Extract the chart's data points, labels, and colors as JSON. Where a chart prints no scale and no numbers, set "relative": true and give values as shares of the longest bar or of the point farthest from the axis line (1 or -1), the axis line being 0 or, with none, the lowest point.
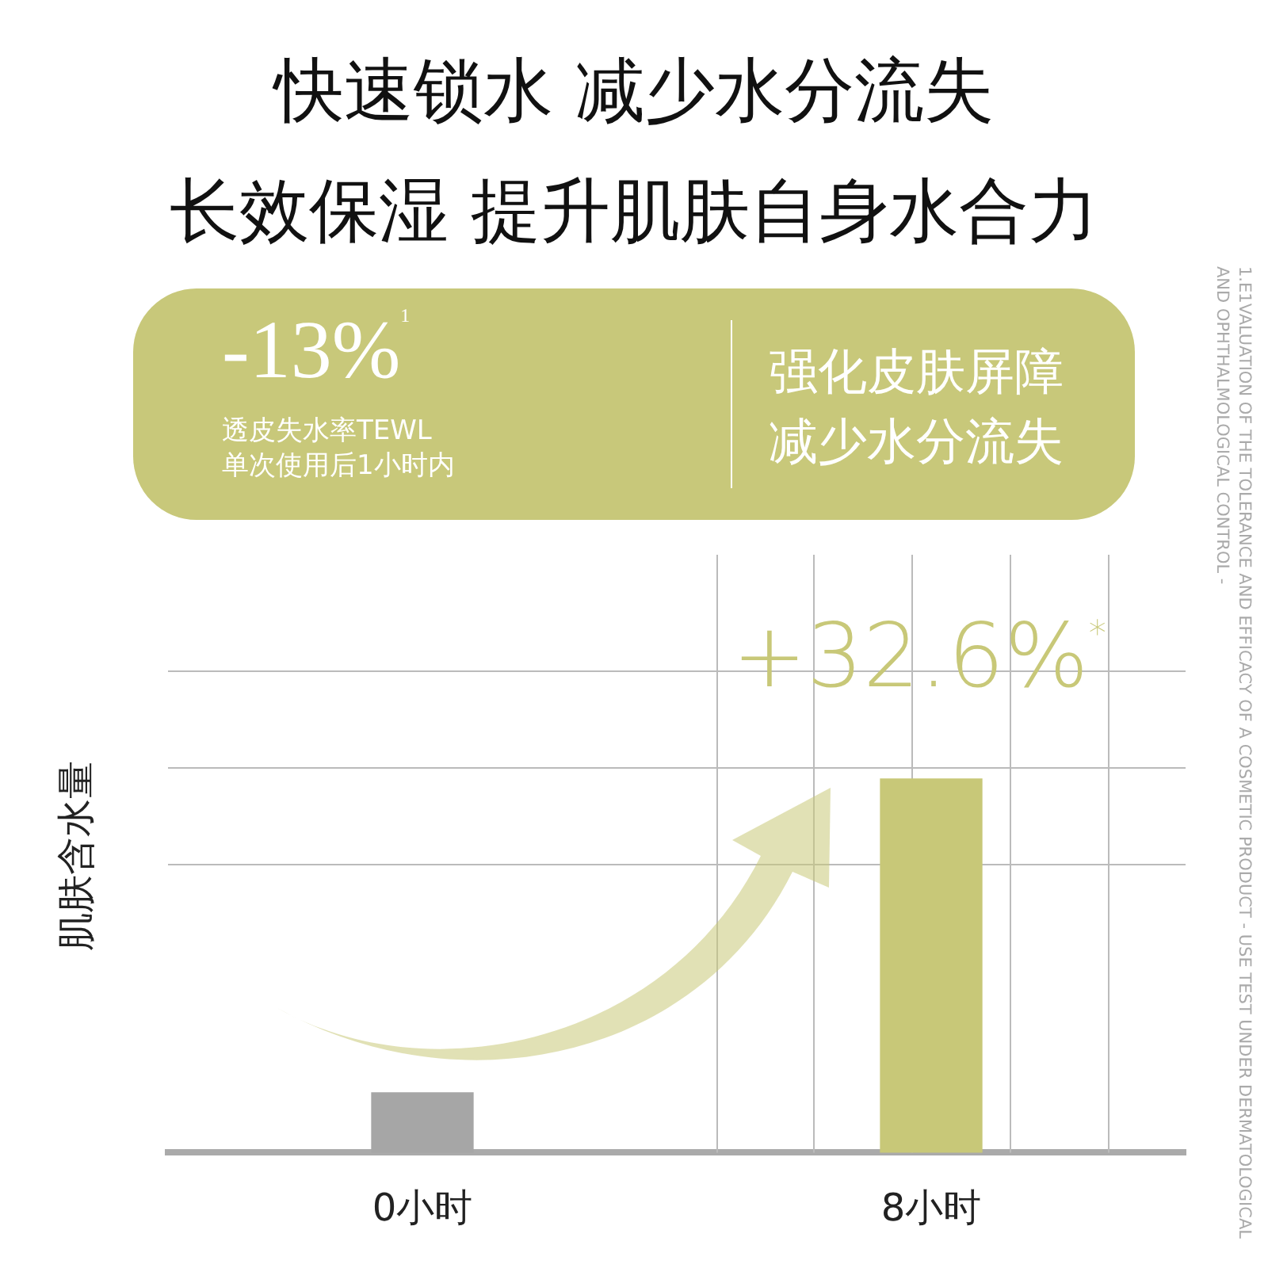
{
  "chart_data": {
    "type": "bar",
    "title": "快速锁水 减少水分流失",
    "subtitle": "长效保湿 提升肌肤自身水合力",
    "ylabel": "肌肤含水量",
    "categories": [
      "0小时",
      "8小时"
    ],
    "values": [
      0.16,
      1
    ],
    "colors": [
      "#a6a6a6",
      "#c8c878"
    ],
    "relative": true,
    "grid": true,
    "annotations": [
      "+32.6%$^{*}$",
      "-13%$^{1}$",
      "透皮失水率TEWL",
      "单次使用后1小时内",
      "强化皮肤屏障",
      "减少水分流失",
      "1.E1VALUATION OF THE TOLERANCE AND EFFICACY OF A COSMETIC PRODUCT - USE TEST UNDER DERMATOLOGICAL AND OPHTHALMOLOGICAL CONTROL -"
    ]
  }
}
